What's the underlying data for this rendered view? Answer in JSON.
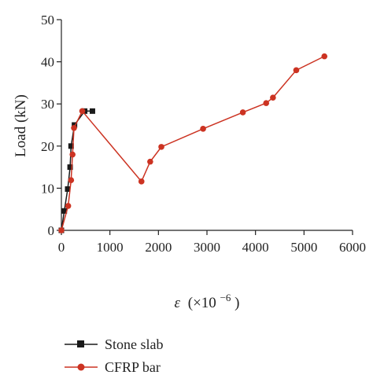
{
  "chart_data": {
    "type": "line",
    "xlabel_symbol": "ε",
    "xlabel_unit": "(×10",
    "xlabel_exp": "−6",
    "xlabel_close": ")",
    "ylabel": "Load (kN)",
    "xlim": [
      0,
      6000
    ],
    "ylim": [
      0,
      50
    ],
    "x_ticks": [
      0,
      1000,
      2000,
      3000,
      4000,
      5000,
      6000
    ],
    "y_ticks": [
      0,
      10,
      20,
      30,
      40,
      50
    ],
    "grid": false,
    "legend_position": "bottom-left",
    "series": [
      {
        "name": "Stone slab",
        "color": "#1a1a1a",
        "marker": "square",
        "x": [
          0,
          60,
          130,
          180,
          200,
          270,
          480,
          640
        ],
        "y": [
          0,
          4.6,
          9.8,
          15.0,
          20.0,
          25.0,
          28.3,
          28.3
        ]
      },
      {
        "name": "CFRP bar",
        "color": "#cc3322",
        "marker": "circle",
        "x": [
          0,
          140,
          200,
          230,
          260,
          430,
          1650,
          1830,
          2060,
          2920,
          3740,
          4220,
          4360,
          4840,
          5420
        ],
        "y": [
          0,
          5.8,
          11.9,
          18.0,
          24.3,
          28.3,
          11.6,
          16.3,
          19.8,
          24.1,
          28.0,
          30.2,
          31.5,
          38.0,
          41.3
        ]
      }
    ]
  }
}
